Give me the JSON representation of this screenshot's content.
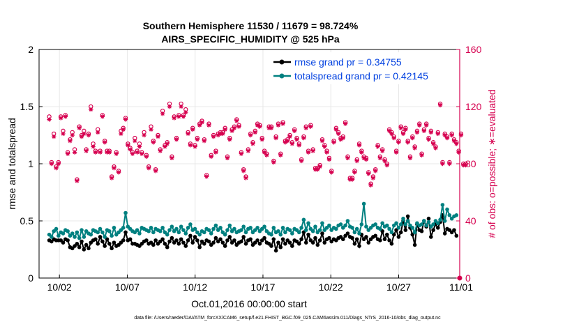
{
  "chart_data": {
    "type": "line",
    "title": "Southern Hemisphere 11530 / 11679 = 98.724%",
    "subtitle": "AIRS_SPECIFIC_HUMIDITY @ 525 hPa",
    "xlabel": "Oct.01,2016 00:00:00 start",
    "ylabel_left": "rmse and totalspread",
    "ylabel_right": "# of obs: o=possible; ∗=evaluated",
    "footnote": "data file: /Users/raeder/DAI/ATM_forcXX/CAM6_setup/f.e21.FHIST_BGC.f09_025.CAM6assim.011/Diags_NTrS_2016-10/obs_diag_output.nc",
    "xlim": [
      0.5,
      31.5
    ],
    "ylim_left": [
      0,
      2
    ],
    "ylim_right": [
      0,
      160
    ],
    "x_ticks": [
      2,
      7,
      12,
      17,
      22,
      27,
      32
    ],
    "x_tick_labels": [
      "10/02",
      "10/07",
      "10/12",
      "10/17",
      "10/22",
      "10/27",
      "11/01"
    ],
    "y_ticks_left": [
      0,
      0.5,
      1,
      1.5,
      2
    ],
    "y_tick_labels_left": [
      "0",
      "0.5",
      "1",
      "1.5",
      "2"
    ],
    "y_ticks_right": [
      0,
      40,
      80,
      120,
      160
    ],
    "y_tick_labels_right": [
      "0",
      "40",
      "80",
      "120",
      "160"
    ],
    "grid": true,
    "legend_position": "top-right",
    "colors": {
      "rmse": "#000000",
      "spread": "#008080",
      "obs": "#d6004f",
      "grid": "#e8e8e8"
    },
    "series": [
      {
        "name": "rmse grand pr = 0.34755",
        "values": [
          0.33,
          0.32,
          0.34,
          0.33,
          0.33,
          0.33,
          0.31,
          0.34,
          0.33,
          0.27,
          0.26,
          0.28,
          0.3,
          0.27,
          0.32,
          0.25,
          0.29,
          0.26,
          0.31,
          0.33,
          0.34,
          0.3,
          0.36,
          0.32,
          0.28,
          0.34,
          0.3,
          0.26,
          0.31,
          0.28,
          0.29,
          0.31,
          0.33,
          0.4,
          0.33,
          0.34,
          0.3,
          0.3,
          0.29,
          0.28,
          0.3,
          0.32,
          0.33,
          0.3,
          0.31,
          0.29,
          0.33,
          0.3,
          0.32,
          0.34,
          0.3,
          0.27,
          0.32,
          0.35,
          0.31,
          0.33,
          0.3,
          0.34,
          0.31,
          0.28,
          0.33,
          0.37,
          0.31,
          0.36,
          0.33,
          0.27,
          0.32,
          0.3,
          0.33,
          0.32,
          0.29,
          0.31,
          0.35,
          0.32,
          0.34,
          0.31,
          0.28,
          0.33,
          0.36,
          0.31,
          0.33,
          0.29,
          0.31,
          0.32,
          0.36,
          0.3,
          0.33,
          0.34,
          0.29,
          0.31,
          0.33,
          0.3,
          0.33,
          0.35,
          0.31,
          0.3,
          0.28,
          0.34,
          0.24,
          0.31,
          0.27,
          0.34,
          0.3,
          0.33,
          0.31,
          0.28,
          0.33,
          0.32,
          0.3,
          0.34,
          0.4,
          0.31,
          0.38,
          0.33,
          0.31,
          0.35,
          0.29,
          0.33,
          0.39,
          0.31,
          0.34,
          0.35,
          0.32,
          0.34,
          0.33,
          0.35,
          0.36,
          0.34,
          0.37,
          0.39,
          0.36,
          0.35,
          0.3,
          0.34,
          0.28,
          0.38,
          0.34,
          0.36,
          0.31,
          0.34,
          0.36,
          0.37,
          0.34,
          0.33,
          0.41,
          0.34,
          0.38,
          0.33,
          0.3,
          0.38,
          0.42,
          0.36,
          0.4,
          0.5,
          0.42,
          0.54,
          0.44,
          0.38,
          0.29,
          0.47,
          0.42,
          0.41,
          0.5,
          0.45,
          0.52,
          0.36,
          0.42,
          0.47,
          0.44,
          0.49,
          0.55,
          0.39,
          0.43,
          0.42,
          0.4,
          0.42,
          0.37
        ]
      },
      {
        "name": "totalspread grand pr = 0.42145",
        "values": [
          0.38,
          0.36,
          0.41,
          0.43,
          0.37,
          0.4,
          0.39,
          0.42,
          0.41,
          0.37,
          0.39,
          0.36,
          0.4,
          0.35,
          0.42,
          0.36,
          0.41,
          0.39,
          0.38,
          0.42,
          0.41,
          0.4,
          0.43,
          0.4,
          0.36,
          0.42,
          0.41,
          0.37,
          0.44,
          0.38,
          0.4,
          0.42,
          0.44,
          0.57,
          0.45,
          0.43,
          0.41,
          0.4,
          0.42,
          0.39,
          0.44,
          0.43,
          0.42,
          0.41,
          0.44,
          0.4,
          0.43,
          0.42,
          0.41,
          0.44,
          0.4,
          0.38,
          0.42,
          0.45,
          0.41,
          0.43,
          0.4,
          0.45,
          0.42,
          0.39,
          0.44,
          0.47,
          0.42,
          0.43,
          0.4,
          0.38,
          0.41,
          0.4,
          0.43,
          0.42,
          0.39,
          0.43,
          0.46,
          0.42,
          0.44,
          0.4,
          0.38,
          0.42,
          0.46,
          0.41,
          0.43,
          0.4,
          0.41,
          0.42,
          0.45,
          0.4,
          0.43,
          0.44,
          0.4,
          0.42,
          0.44,
          0.41,
          0.43,
          0.45,
          0.41,
          0.39,
          0.38,
          0.44,
          0.4,
          0.41,
          0.38,
          0.44,
          0.4,
          0.43,
          0.42,
          0.39,
          0.43,
          0.42,
          0.4,
          0.44,
          0.51,
          0.42,
          0.48,
          0.43,
          0.41,
          0.45,
          0.4,
          0.42,
          0.48,
          0.42,
          0.44,
          0.46,
          0.42,
          0.44,
          0.43,
          0.46,
          0.47,
          0.44,
          0.46,
          0.5,
          0.45,
          0.44,
          0.4,
          0.43,
          0.39,
          0.47,
          0.65,
          0.45,
          0.42,
          0.44,
          0.46,
          0.47,
          0.44,
          0.43,
          0.48,
          0.45,
          0.46,
          0.43,
          0.4,
          0.46,
          0.48,
          0.44,
          0.47,
          0.52,
          0.47,
          0.5,
          0.46,
          0.44,
          0.4,
          0.48,
          0.46,
          0.47,
          0.5,
          0.46,
          0.49,
          0.45,
          0.47,
          0.5,
          0.48,
          0.51,
          0.64,
          0.5,
          0.6,
          0.55,
          0.52,
          0.54,
          0.55
        ]
      },
      {
        "name": "obs possible",
        "marker": "o",
        "values": [
          113,
          81,
          101,
          78,
          81,
          113,
          103,
          114,
          88,
          97,
          102,
          90,
          69,
          106,
          100,
          103,
          90,
          101,
          120,
          94,
          89,
          104,
          89,
          114,
          96,
          89,
          89,
          71,
          78,
          88,
          75,
          103,
          105,
          112,
          94,
          91,
          88,
          98,
          89,
          94,
          88,
          102,
          86,
          78,
          106,
          96,
          76,
          100,
          90,
          117,
          93,
          95,
          122,
          85,
          113,
          98,
          114,
          122,
          114,
          118,
          102,
          94,
          105,
          93,
          98,
          108,
          110,
          97,
          72,
          108,
          86,
          100,
          89,
          101,
          102,
          102,
          105,
          85,
          98,
          104,
          106,
          111,
          107,
          88,
          76,
          71,
          90,
          101,
          95,
          103,
          108,
          107,
          98,
          89,
          87,
          106,
          106,
          82,
          99,
          108,
          87,
          109,
          96,
          97,
          100,
          95,
          104,
          98,
          94,
          83,
          99,
          106,
          89,
          107,
          90,
          77,
          77,
          79,
          97,
          93,
          89,
          84,
          75,
          96,
          105,
          102,
          98,
          99,
          109,
          85,
          70,
          70,
          75,
          83,
          94,
          89,
          85,
          84,
          74,
          66,
          71,
          76,
          93,
          85,
          90,
          83,
          80,
          104,
          102,
          99,
          89,
          96,
          106,
          102,
          105,
          96,
          85,
          99,
          92,
          103,
          108,
          87,
          104,
          108,
          98,
          103,
          95,
          92,
          102,
          122,
          81,
          101,
          99,
          81,
          101,
          97,
          95,
          89,
          101,
          80,
          80
        ]
      },
      {
        "name": "obs evaluated",
        "marker": "*",
        "values": [
          111,
          80,
          99,
          77,
          80,
          112,
          101,
          113,
          87,
          96,
          100,
          88,
          68,
          105,
          99,
          101,
          89,
          100,
          118,
          92,
          88,
          102,
          88,
          113,
          95,
          88,
          88,
          70,
          77,
          87,
          74,
          101,
          104,
          111,
          93,
          90,
          87,
          96,
          88,
          92,
          87,
          100,
          85,
          77,
          104,
          95,
          75,
          99,
          89,
          115,
          92,
          94,
          120,
          84,
          112,
          97,
          113,
          120,
          113,
          116,
          101,
          93,
          104,
          92,
          97,
          107,
          109,
          96,
          71,
          107,
          85,
          99,
          88,
          100,
          101,
          101,
          104,
          84,
          97,
          103,
          105,
          110,
          106,
          87,
          75,
          70,
          89,
          100,
          94,
          102,
          107,
          106,
          97,
          88,
          86,
          105,
          105,
          81,
          98,
          107,
          86,
          108,
          95,
          96,
          99,
          94,
          103,
          97,
          93,
          82,
          98,
          105,
          88,
          106,
          89,
          76,
          76,
          78,
          96,
          92,
          88,
          83,
          74,
          95,
          104,
          101,
          97,
          98,
          108,
          84,
          69,
          69,
          74,
          82,
          93,
          88,
          84,
          83,
          73,
          65,
          70,
          75,
          92,
          84,
          89,
          82,
          79,
          103,
          101,
          98,
          88,
          95,
          105,
          101,
          104,
          95,
          84,
          98,
          91,
          102,
          107,
          86,
          103,
          107,
          97,
          102,
          94,
          91,
          101,
          121,
          80,
          100,
          98,
          80,
          100,
          96,
          94,
          88,
          100,
          79,
          79
        ]
      }
    ]
  }
}
